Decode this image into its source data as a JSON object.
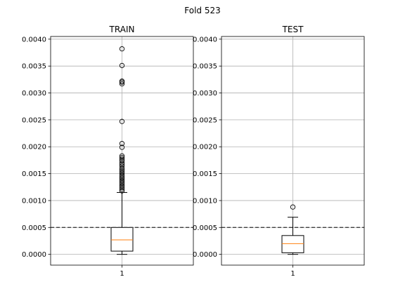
{
  "figure": {
    "suptitle": "Fold 523"
  },
  "colors": {
    "median": "#ff7f0e",
    "grid": "#b0b0b0",
    "reference": "#404040",
    "box": "#000000"
  },
  "chart_data": [
    {
      "type": "box",
      "title": "TRAIN",
      "xlabel": "",
      "ylabel": "",
      "categories": [
        "1"
      ],
      "ylim": [
        -0.0002,
        0.00405
      ],
      "yticks": [
        "0.0000",
        "0.0005",
        "0.0010",
        "0.0015",
        "0.0020",
        "0.0025",
        "0.0030",
        "0.0035",
        "0.0040"
      ],
      "grid": true,
      "reference_line": 0.0005,
      "box": {
        "whisker_low": 0.0,
        "q1": 6e-05,
        "median": 0.00027,
        "q3": 0.0005,
        "whisker_high": 0.00115
      },
      "outliers": [
        0.00382,
        0.00351,
        0.00322,
        0.0032,
        0.00317,
        0.00247,
        0.00206,
        0.00199,
        0.00183,
        0.0018,
        0.00177,
        0.00174,
        0.0017,
        0.00167,
        0.00164,
        0.0016,
        0.00157,
        0.00154,
        0.00151,
        0.00148,
        0.00145,
        0.00142,
        0.00139,
        0.00136,
        0.00133,
        0.0013,
        0.00127,
        0.00124,
        0.00121,
        0.00118
      ]
    },
    {
      "type": "box",
      "title": "TEST",
      "xlabel": "",
      "ylabel": "",
      "categories": [
        "1"
      ],
      "ylim": [
        -0.0002,
        0.00405
      ],
      "yticks": [
        "0.0000",
        "0.0005",
        "0.0010",
        "0.0015",
        "0.0020",
        "0.0025",
        "0.0030",
        "0.0035",
        "0.0040"
      ],
      "grid": true,
      "reference_line": 0.0005,
      "box": {
        "whisker_low": 0.0,
        "q1": 3e-05,
        "median": 0.0002,
        "q3": 0.00035,
        "whisker_high": 0.00069
      },
      "outliers": [
        0.00088
      ]
    }
  ]
}
